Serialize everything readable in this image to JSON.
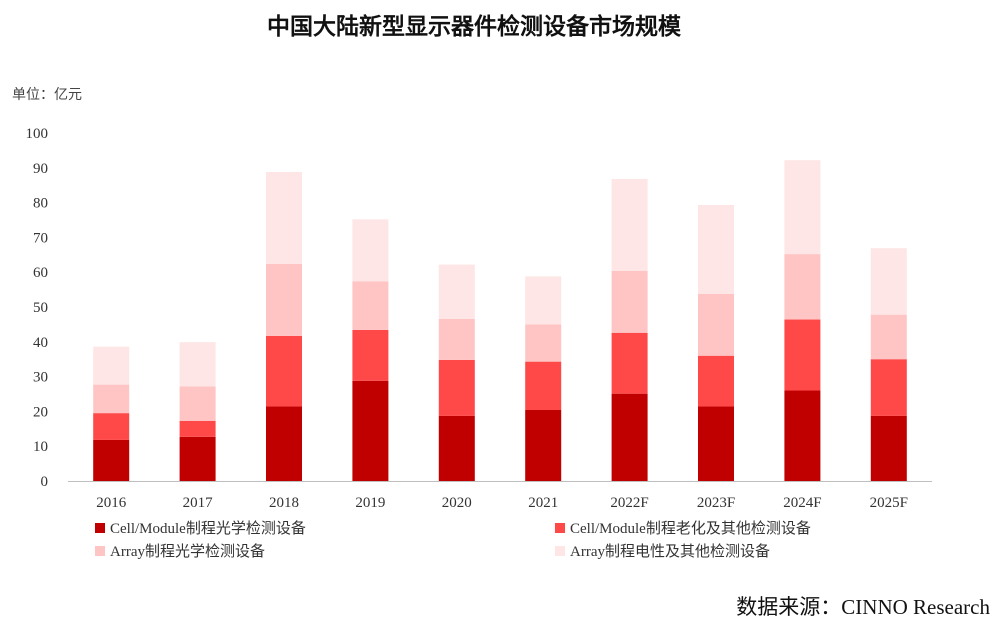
{
  "chart_data": {
    "type": "bar",
    "stacked": true,
    "title": "中国大陆新型显示器件检测设备市场规模",
    "unit_label": "单位：亿元",
    "ylim": [
      0,
      100
    ],
    "yticks": [
      0,
      10,
      20,
      30,
      40,
      50,
      60,
      70,
      80,
      90,
      100
    ],
    "categories": [
      "2016",
      "2017",
      "2018",
      "2019",
      "2020",
      "2021",
      "2022F",
      "2023F",
      "2024F",
      "2025F"
    ],
    "series": [
      {
        "name": "Cell/Module制程光学检测设备",
        "color": "#c00000",
        "values": [
          11.8,
          12.7,
          21.4,
          28.8,
          18.7,
          20.4,
          25.1,
          21.4,
          26.0,
          18.7
        ]
      },
      {
        "name": "Cell/Module制程老化及其他检测设备",
        "color": "#ff4848",
        "values": [
          7.7,
          4.6,
          20.3,
          14.6,
          16.1,
          13.9,
          17.5,
          14.6,
          20.4,
          16.3
        ]
      },
      {
        "name": "Array制程光学检测设备",
        "color": "#ffc4c4",
        "values": [
          8.2,
          9.9,
          20.7,
          14.0,
          11.8,
          10.7,
          17.8,
          17.8,
          18.8,
          12.8
        ]
      },
      {
        "name": "Array制程电性及其他检测设备",
        "color": "#ffe6e6",
        "values": [
          10.9,
          12.7,
          26.4,
          17.8,
          15.6,
          13.8,
          26.4,
          25.5,
          27.0,
          19.1
        ]
      }
    ],
    "legend_position": "bottom",
    "grid": false,
    "source": "数据来源：CINNO Research"
  }
}
